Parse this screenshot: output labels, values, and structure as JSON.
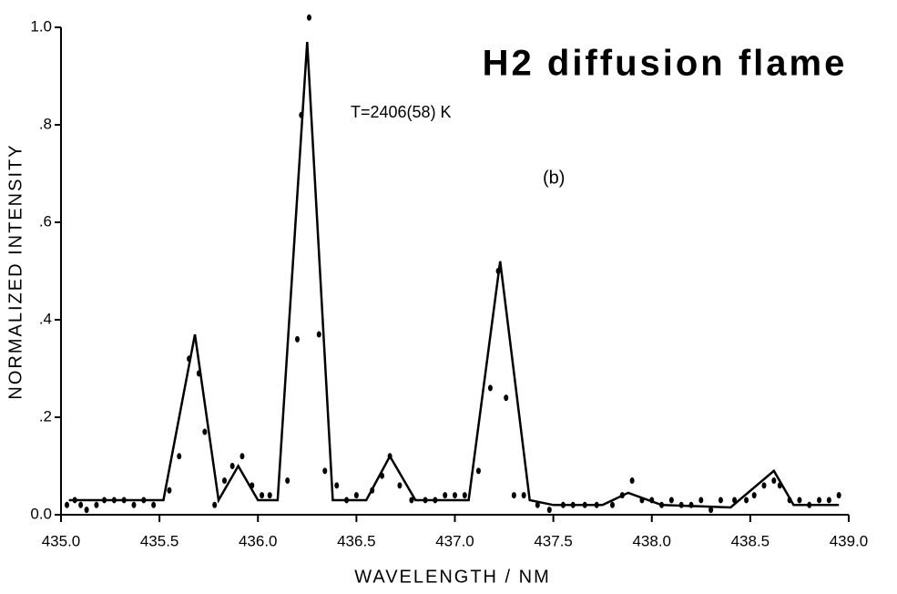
{
  "chart_data": {
    "type": "line",
    "title": "H2 diffusion flame",
    "annotations": [
      "T=2406(58) K",
      "(b)"
    ],
    "x_label": "WAVELENGTH / NM",
    "y_label": "NORMALIZED INTENSITY",
    "color": "#000000",
    "xlim": [
      435.0,
      439.0
    ],
    "ylim": [
      0,
      1.0
    ],
    "xticks": [
      {
        "value": 435.0,
        "label": "435.0"
      },
      {
        "value": 435.5,
        "label": "435.5"
      },
      {
        "value": 436.0,
        "label": "436.0"
      },
      {
        "value": 436.5,
        "label": "436.5"
      },
      {
        "value": 437.0,
        "label": "437.0"
      },
      {
        "value": 437.5,
        "label": "437.5"
      },
      {
        "value": 438.0,
        "label": "438.0"
      },
      {
        "value": 438.5,
        "label": "438.5"
      },
      {
        "value": 439.0,
        "label": "439.0"
      }
    ],
    "yticks": [
      {
        "value": 0,
        "label": "0.0"
      },
      {
        "value": 0.2,
        "label": ".2"
      },
      {
        "value": 0.4,
        "label": ".4"
      },
      {
        "value": 0.6,
        "label": ".6"
      },
      {
        "value": 0.8,
        "label": ".8"
      },
      {
        "value": 1.0,
        "label": "1.0"
      }
    ],
    "series": [
      {
        "type": "line",
        "x": [
          435.04,
          435.52,
          435.68,
          435.8,
          435.9,
          436.0,
          436.1,
          436.25,
          436.38,
          436.55,
          436.67,
          436.8,
          437.07,
          437.23,
          437.38,
          437.5,
          437.75,
          437.88,
          438.05,
          438.4,
          438.62,
          438.72,
          438.95
        ],
        "values": [
          0.03,
          0.03,
          0.37,
          0.03,
          0.1,
          0.03,
          0.03,
          0.97,
          0.03,
          0.03,
          0.12,
          0.03,
          0.03,
          0.52,
          0.03,
          0.02,
          0.02,
          0.045,
          0.02,
          0.015,
          0.09,
          0.02,
          0.02
        ]
      },
      {
        "type": "scatter",
        "x": [
          435.03,
          435.07,
          435.1,
          435.13,
          435.18,
          435.22,
          435.27,
          435.32,
          435.37,
          435.42,
          435.47,
          435.55,
          435.6,
          435.65,
          435.7,
          435.73,
          435.78,
          435.83,
          435.87,
          435.92,
          435.97,
          436.02,
          436.06,
          436.15,
          436.2,
          436.22,
          436.26,
          436.31,
          436.34,
          436.4,
          436.45,
          436.5,
          436.58,
          436.63,
          436.67,
          436.72,
          436.78,
          436.85,
          436.9,
          436.95,
          437.0,
          437.05,
          437.12,
          437.18,
          437.22,
          437.26,
          437.3,
          437.35,
          437.42,
          437.48,
          437.55,
          437.6,
          437.66,
          437.72,
          437.8,
          437.85,
          437.9,
          437.95,
          438.0,
          438.05,
          438.1,
          438.15,
          438.2,
          438.25,
          438.3,
          438.35,
          438.42,
          438.48,
          438.52,
          438.57,
          438.62,
          438.65,
          438.7,
          438.75,
          438.8,
          438.85,
          438.9,
          438.95
        ],
        "values": [
          0.02,
          0.03,
          0.02,
          0.01,
          0.02,
          0.03,
          0.03,
          0.03,
          0.02,
          0.03,
          0.02,
          0.05,
          0.12,
          0.32,
          0.29,
          0.17,
          0.02,
          0.07,
          0.1,
          0.12,
          0.06,
          0.04,
          0.04,
          0.07,
          0.36,
          0.82,
          1.02,
          0.37,
          0.09,
          0.06,
          0.03,
          0.04,
          0.05,
          0.08,
          0.12,
          0.06,
          0.03,
          0.03,
          0.03,
          0.04,
          0.04,
          0.04,
          0.09,
          0.26,
          0.5,
          0.24,
          0.04,
          0.04,
          0.02,
          0.01,
          0.02,
          0.02,
          0.02,
          0.02,
          0.02,
          0.04,
          0.07,
          0.03,
          0.03,
          0.02,
          0.03,
          0.02,
          0.02,
          0.03,
          0.01,
          0.03,
          0.03,
          0.03,
          0.04,
          0.06,
          0.07,
          0.06,
          0.03,
          0.03,
          0.02,
          0.03,
          0.03,
          0.04
        ]
      }
    ]
  }
}
